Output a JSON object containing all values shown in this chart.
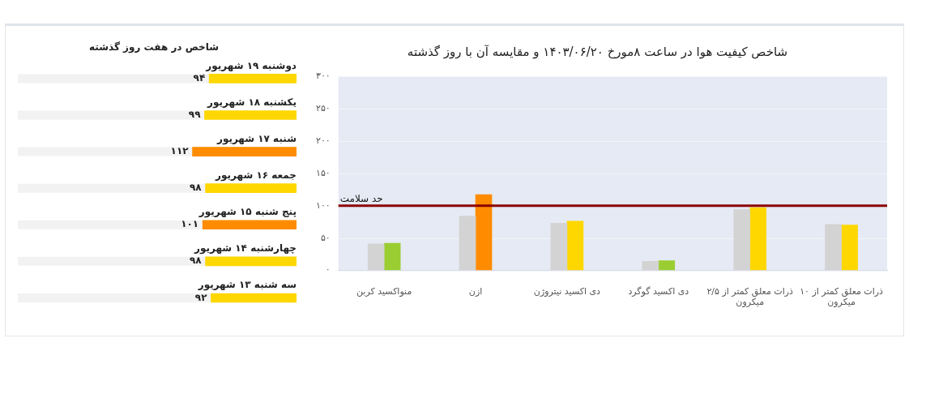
{
  "chart_data": [
    {
      "type": "bar",
      "title": "شاخص کیفیت هوا در ساعت ۸مورخ ۱۴۰۳/۰۶/۲۰ و مقایسه آن با روز گذشته",
      "categories": [
        "منواکسید کربن",
        "ازن",
        "دی اکسید نیتروژن",
        "دی اکسید گوگرد",
        "ذرات معلق کمتر از ۲/۵ میکرون",
        "ذرات معلق کمتر از ۱۰ میکرون"
      ],
      "series": [
        {
          "color": "#d3d3d3",
          "values": [
            41,
            84,
            73,
            14,
            94,
            71
          ]
        },
        {
          "colors": [
            "#9acd32",
            "#ff8c00",
            "#ffd700",
            "#9acd32",
            "#ffd700",
            "#ffd700"
          ],
          "values": [
            42,
            117,
            76,
            15,
            97,
            70
          ]
        }
      ],
      "ylim": [
        0,
        300
      ],
      "yticks": [
        {
          "value": 0,
          "label": "۰"
        },
        {
          "value": 50,
          "label": "۵۰"
        },
        {
          "value": 100,
          "label": "۱۰۰"
        },
        {
          "value": 150,
          "label": "۱۵۰"
        },
        {
          "value": 200,
          "label": "۲۰۰"
        },
        {
          "value": 250,
          "label": "۲۵۰"
        },
        {
          "value": 300,
          "label": "۳۰۰"
        }
      ],
      "grid": "y",
      "ref_lines": [
        {
          "axis": "y",
          "value": 100,
          "label": "حد سلامت",
          "color": "#8b0000"
        }
      ]
    },
    {
      "type": "bar",
      "orientation": "horizontal",
      "title": "شاخص در هفت روز گذشته",
      "categories": [
        "دوشنبه ۱۹ شهریور",
        "یکشنبه ۱۸ شهریور",
        "شنبه ۱۷ شهریور",
        "جمعه ۱۶ شهریور",
        "پنج شنبه ۱۵ شهریور",
        "چهارشنبه ۱۴ شهریور",
        "سه شنبه ۱۳ شهریور"
      ],
      "values": [
        94,
        99,
        112,
        98,
        101,
        98,
        92
      ],
      "colors": [
        "#ffd700",
        "#ffd700",
        "#ff8c00",
        "#ffd700",
        "#ff8c00",
        "#ffd700",
        "#ffd700"
      ],
      "value_labels": [
        "۹۴",
        "۹۹",
        "۱۱۲",
        "۹۸",
        "۱۰۱",
        "۹۸",
        "۹۲"
      ],
      "tick_labels": "y"
    }
  ]
}
